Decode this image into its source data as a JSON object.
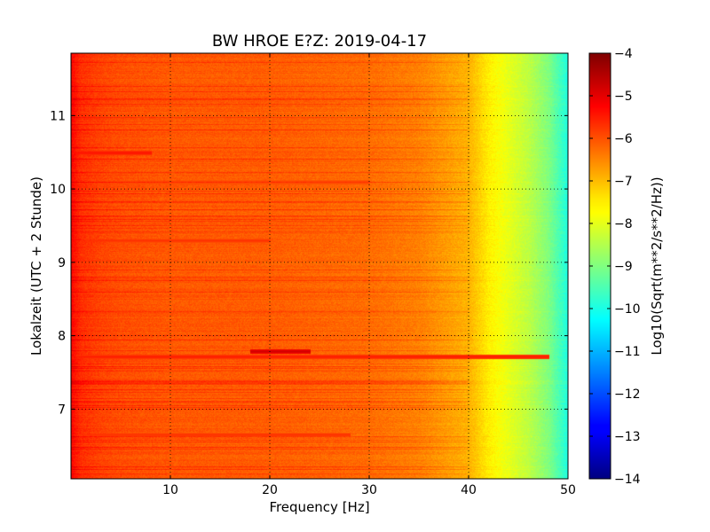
{
  "chart_data": {
    "type": "heatmap",
    "title": "BW HROE E?Z: 2019-04-17",
    "xlabel": "Frequency [Hz]",
    "ylabel": "Lokalzeit (UTC + 2 Stunde)",
    "colorbar_label": "Log10(Sqrt(m**2/s**2/Hz))",
    "xlim": [
      0,
      50
    ],
    "ylim": [
      11.85,
      6.05
    ],
    "x_ticks": [
      10,
      20,
      30,
      40,
      50
    ],
    "y_ticks": [
      7,
      8,
      9,
      10,
      11
    ],
    "colorbar_range": [
      -14,
      -4
    ],
    "colorbar_ticks": [
      -4,
      -5,
      -6,
      -7,
      -8,
      -9,
      -10,
      -11,
      -12,
      -13,
      -14
    ],
    "colormap": "jet",
    "grid": true,
    "frequency_profile": {
      "frequency_hz": [
        0,
        1,
        3,
        5,
        10,
        20,
        30,
        35,
        38,
        40,
        41,
        42,
        43,
        44,
        46,
        48,
        49,
        50
      ],
      "level": [
        -5.3,
        -5.7,
        -5.9,
        -6.0,
        -6.1,
        -6.15,
        -6.3,
        -6.5,
        -6.8,
        -7.0,
        -7.3,
        -7.6,
        -7.8,
        -8.0,
        -8.4,
        -9.0,
        -9.5,
        -10.0
      ]
    },
    "bright_bands": [
      {
        "time": 6.65,
        "f_from": 0,
        "f_to": 28,
        "level": -5.7
      },
      {
        "time": 7.72,
        "f_from": 0,
        "f_to": 48,
        "level": -5.5
      },
      {
        "time": 7.79,
        "f_from": 18,
        "f_to": 24,
        "level": -4.8
      },
      {
        "time": 9.3,
        "f_from": 0,
        "f_to": 20,
        "level": -5.7
      },
      {
        "time": 10.1,
        "f_from": 0,
        "f_to": 30,
        "level": -5.8
      },
      {
        "time": 10.5,
        "f_from": 0,
        "f_to": 8,
        "level": -5.4
      }
    ]
  }
}
